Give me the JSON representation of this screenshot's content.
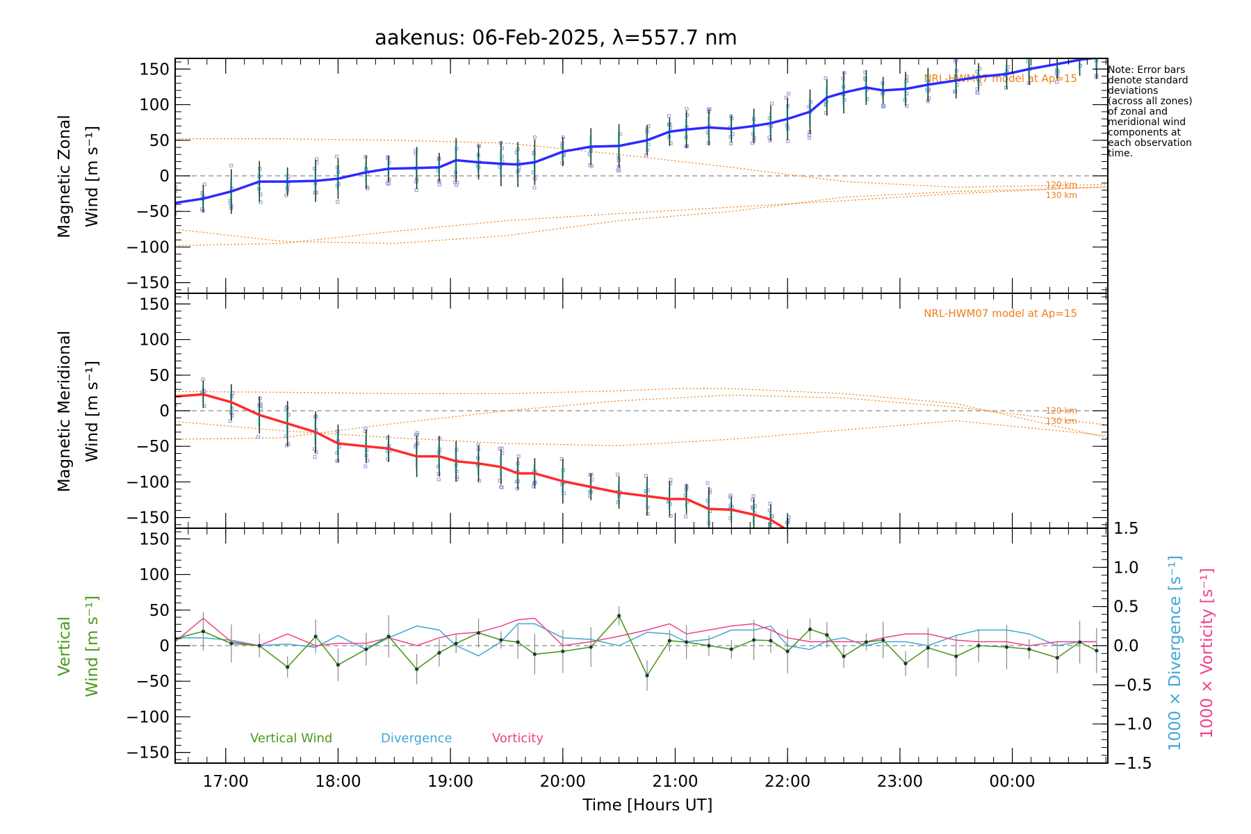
{
  "title": "aakenus: 06-Feb-2025, λ=557.7 nm",
  "note": [
    "Note: Error bars",
    "denote standard",
    "deviations",
    "(across all zones)",
    "of zonal and",
    "meridional wind",
    "components at",
    "each observation",
    "time."
  ],
  "x_axis": {
    "label": "Time [Hours UT]",
    "ticks": [
      {
        "t": 17.0,
        "label": "17:00"
      },
      {
        "t": 18.0,
        "label": "18:00"
      },
      {
        "t": 19.0,
        "label": "19:00"
      },
      {
        "t": 20.0,
        "label": "20:00"
      },
      {
        "t": 21.0,
        "label": "21:00"
      },
      {
        "t": 22.0,
        "label": "22:00"
      },
      {
        "t": 23.0,
        "label": "23:00"
      },
      {
        "t": 24.0,
        "label": "00:00"
      }
    ]
  },
  "y_ticks": [
    "150",
    "100",
    "50",
    "0",
    "−50",
    "−100",
    "−150"
  ],
  "right_ticks": [
    "1.5",
    "1.0",
    "0.5",
    "0.0",
    "−0.5",
    "−1.0",
    "−1.5"
  ],
  "labels": {
    "zonal_1": "Magnetic Zonal",
    "zonal_2": "Wind [m s⁻¹]",
    "merid_1": "Magnetic Meridional",
    "merid_2": "Wind [m s⁻¹]",
    "vert_1": "Vertical",
    "vert_2": "Wind [m s⁻¹]",
    "div": "1000 × Divergence [s⁻¹]",
    "vort": "1000 × Vorticity [s⁻¹]",
    "model": "NRL-HWM07 model at Ap=15",
    "alt_120": "120 km",
    "alt_130": "130 km"
  },
  "legend": {
    "vertical": "Vertical Wind",
    "divergence": "Divergence",
    "vorticity": "Vorticity"
  },
  "colors": {
    "zonal": "#2b2bff",
    "meridional": "#ff2b2b",
    "vertical": "#4c9a1c",
    "divergence": "#3fa7d6",
    "vorticity": "#f0408a",
    "model": "#ef7f1a",
    "scatter": "#9999dd"
  },
  "chart_data": [
    {
      "type": "line",
      "panel": "zonal",
      "title": "aakenus: 06-Feb-2025, λ=557.7 nm",
      "ylabel": "Magnetic Zonal Wind [m s-1]",
      "xlim": [
        16.55,
        24.85
      ],
      "ylim": [
        -165,
        165
      ],
      "x": [
        16.55,
        16.8,
        17.05,
        17.3,
        17.55,
        17.8,
        18.0,
        18.25,
        18.45,
        18.7,
        18.9,
        19.05,
        19.25,
        19.45,
        19.6,
        19.75,
        20.0,
        20.25,
        20.5,
        20.75,
        20.95,
        21.1,
        21.3,
        21.5,
        21.7,
        21.85,
        22.0,
        22.2,
        22.35,
        22.5,
        22.7,
        22.85,
        23.05,
        23.25,
        23.5,
        23.7,
        23.95,
        24.15,
        24.4,
        24.6,
        24.75
      ],
      "series": [
        {
          "name": "Magnetic Zonal Wind",
          "values": [
            -38,
            -32,
            -22,
            -8,
            -8,
            -7,
            -4,
            5,
            10,
            11,
            12,
            22,
            19,
            17,
            16,
            19,
            34,
            41,
            42,
            50,
            62,
            65,
            68,
            66,
            70,
            74,
            80,
            90,
            110,
            117,
            124,
            120,
            122,
            128,
            134,
            139,
            143,
            150,
            157,
            163,
            166
          ]
        }
      ],
      "model": [
        {
          "name": "NRL-HWM07 120 km",
          "x": [
            16.55,
            17.5,
            18.5,
            19.5,
            20.5,
            21.5,
            22.5,
            23.5,
            24.85
          ],
          "values": [
            -75,
            -92,
            -95,
            -84,
            -63,
            -50,
            -30,
            -22,
            -16
          ]
        },
        {
          "name": "NRL-HWM07 130 km",
          "x": [
            16.55,
            17.5,
            18.5,
            19.5,
            20.5,
            21.5,
            22.5,
            23.5,
            24.85
          ],
          "values": [
            -98,
            -95,
            -78,
            -63,
            -53,
            -44,
            -35,
            -25,
            -15
          ]
        },
        {
          "name": "NRL-HWM07 upper",
          "x": [
            16.55,
            17.5,
            18.5,
            19.5,
            20.5,
            21.5,
            22.5,
            23.5,
            24.85
          ],
          "values": [
            52,
            52,
            50,
            46,
            30,
            12,
            -8,
            -16,
            -12
          ]
        }
      ]
    },
    {
      "type": "line",
      "panel": "meridional",
      "ylabel": "Magnetic Meridional Wind [m s-1]",
      "xlim": [
        16.55,
        24.85
      ],
      "ylim": [
        -165,
        165
      ],
      "x": [
        16.55,
        16.8,
        17.05,
        17.3,
        17.55,
        17.8,
        18.0,
        18.25,
        18.45,
        18.7,
        18.9,
        19.05,
        19.25,
        19.45,
        19.6,
        19.75,
        20.0,
        20.25,
        20.5,
        20.75,
        20.95,
        21.1,
        21.3,
        21.5,
        21.7,
        21.85,
        22.0
      ],
      "series": [
        {
          "name": "Magnetic Meridional Wind",
          "values": [
            20,
            23,
            12,
            -6,
            -18,
            -30,
            -46,
            -50,
            -53,
            -64,
            -64,
            -71,
            -74,
            -79,
            -88,
            -88,
            -99,
            -107,
            -115,
            -120,
            -124,
            -124,
            -138,
            -139,
            -146,
            -153,
            -168
          ]
        }
      ],
      "model": [
        {
          "name": "NRL-HWM07 upper",
          "x": [
            16.55,
            17.5,
            18.5,
            19.5,
            20.5,
            21.0,
            21.5,
            22.5,
            23.5,
            24.85
          ],
          "values": [
            27,
            26,
            24,
            24,
            28,
            31,
            31,
            24,
            10,
            -38
          ]
        },
        {
          "name": "NRL-HWM07 120 km",
          "x": [
            16.55,
            17.5,
            18.5,
            19.5,
            20.5,
            21.5,
            22.5,
            23.5,
            24.85
          ],
          "values": [
            -40,
            -38,
            -18,
            0,
            14,
            22,
            18,
            5,
            -20
          ]
        },
        {
          "name": "NRL-HWM07 130 km",
          "x": [
            16.55,
            17.5,
            18.5,
            19.5,
            20.5,
            21.5,
            22.5,
            23.5,
            24.85
          ],
          "values": [
            -15,
            -28,
            -38,
            -46,
            -49,
            -40,
            -27,
            -14,
            -35
          ]
        }
      ]
    },
    {
      "type": "line",
      "panel": "vertical",
      "ylabel": "Vertical Wind [m s-1]",
      "ylabel_right": "1000 x Divergence / Vorticity [s-1]",
      "xlim": [
        16.55,
        24.85
      ],
      "ylim": [
        -165,
        165
      ],
      "ylim_right": [
        -1.5,
        1.5
      ],
      "x": [
        16.55,
        16.8,
        17.05,
        17.3,
        17.55,
        17.8,
        18.0,
        18.25,
        18.45,
        18.7,
        18.9,
        19.05,
        19.25,
        19.45,
        19.6,
        19.75,
        20.0,
        20.25,
        20.5,
        20.75,
        20.95,
        21.1,
        21.3,
        21.5,
        21.7,
        21.85,
        22.0,
        22.2,
        22.35,
        22.5,
        22.7,
        22.85,
        23.05,
        23.25,
        23.5,
        23.7,
        23.95,
        24.15,
        24.4,
        24.6,
        24.75
      ],
      "series": [
        {
          "name": "Vertical Wind",
          "values": [
            10,
            20,
            3,
            0,
            -30,
            13,
            -27,
            -5,
            13,
            -33,
            -10,
            3,
            18,
            8,
            5,
            -12,
            -8,
            -2,
            42,
            -42,
            7,
            5,
            0,
            -5,
            8,
            7,
            -8,
            23,
            15,
            -15,
            5,
            8,
            -25,
            -3,
            -15,
            0,
            -2,
            -5,
            -17,
            5,
            -7
          ]
        },
        {
          "name": "Divergence",
          "values": [
            0.1,
            0.1,
            0.07,
            0.0,
            0.02,
            -0.02,
            0.13,
            -0.05,
            0.1,
            0.25,
            0.2,
            0.0,
            -0.13,
            0.05,
            0.28,
            0.28,
            0.1,
            0.08,
            0.0,
            0.17,
            0.15,
            0.05,
            0.08,
            0.2,
            0.2,
            0.25,
            0.0,
            -0.05,
            0.06,
            0.1,
            0.0,
            0.05,
            0.05,
            0.0,
            0.13,
            0.2,
            0.2,
            0.15,
            0.0,
            0.05,
            0.05
          ]
        },
        {
          "name": "Vorticity",
          "values": [
            0.05,
            0.35,
            0.05,
            0.0,
            0.15,
            0.0,
            0.03,
            0.03,
            0.1,
            0.0,
            0.1,
            0.15,
            0.17,
            0.25,
            0.33,
            0.35,
            0.0,
            0.05,
            0.12,
            0.2,
            0.28,
            0.15,
            0.2,
            0.25,
            0.28,
            0.2,
            0.1,
            0.05,
            0.05,
            0.05,
            0.05,
            0.1,
            0.15,
            0.15,
            0.07,
            0.05,
            0.05,
            0.0,
            0.05,
            0.05,
            0.05
          ]
        }
      ]
    }
  ]
}
